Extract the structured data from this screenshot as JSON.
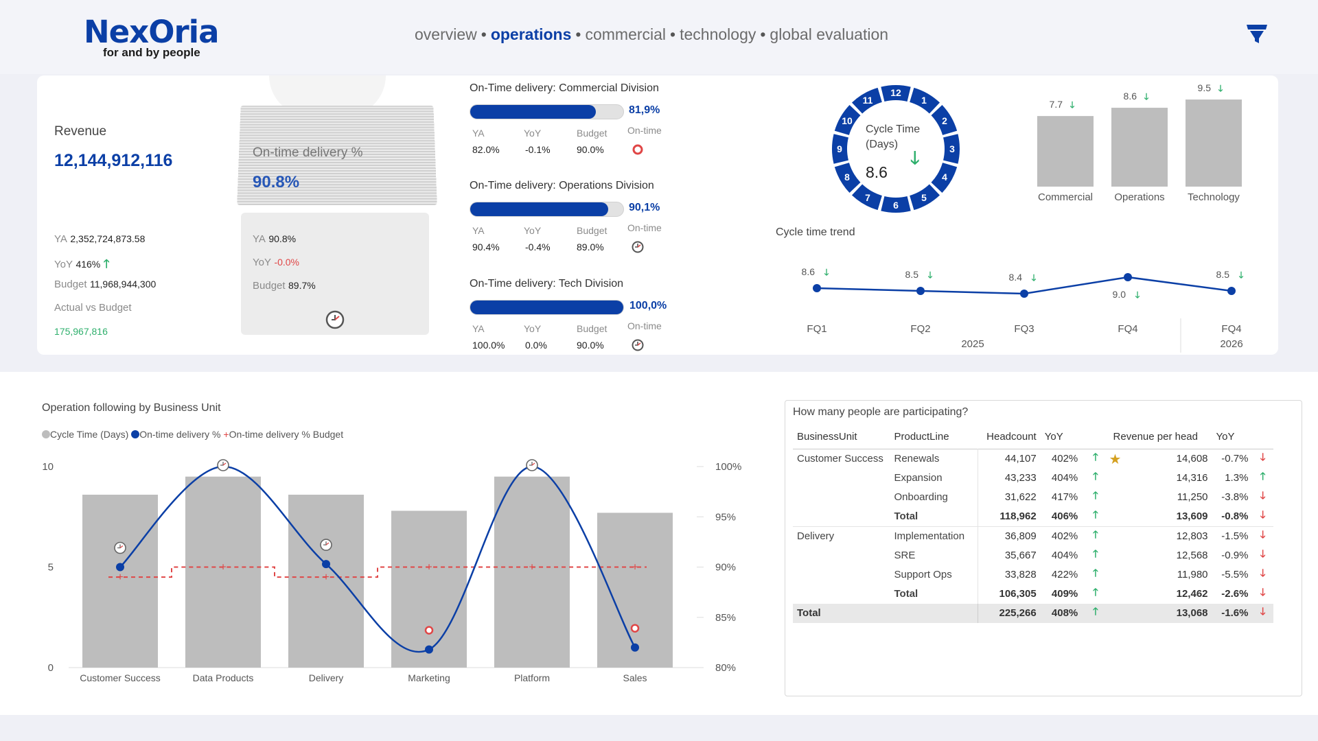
{
  "brand": {
    "name": "NexOria",
    "tagline": "for and by people"
  },
  "nav": {
    "items": [
      "overview",
      "operations",
      "commercial",
      "technology",
      "global evaluation"
    ],
    "active": "operations"
  },
  "revenue": {
    "title": "Revenue",
    "value": "12,144,912,116",
    "ya_label": "YA",
    "ya_value": "2,352,724,873.58",
    "yoy_label": "YoY",
    "yoy_value": "416%",
    "budget_label": "Budget",
    "budget_value": "11,968,944,300",
    "avb_label": "Actual vs Budget",
    "avb_value": "175,967,816"
  },
  "ontime_card": {
    "title": "On-time delivery %",
    "value": "90.8%",
    "ya_label": "YA",
    "ya_value": "90.8%",
    "yoy_label": "YoY",
    "yoy_value": "-0.0%",
    "budget_label": "Budget",
    "budget_value": "89.7%"
  },
  "divisions": [
    {
      "title": "On-Time delivery: Commercial Division",
      "fill": 0.819,
      "pct": "81,9%",
      "ya": "82.0%",
      "yoy": "-0.1%",
      "budget": "90.0%",
      "yoy_neg": true,
      "status": "red"
    },
    {
      "title": "On-Time delivery: Operations Division",
      "fill": 0.901,
      "pct": "90,1%",
      "ya": "90.4%",
      "yoy": "-0.4%",
      "budget": "89.0%",
      "yoy_neg": true,
      "status": "gray"
    },
    {
      "title": "On-Time delivery: Tech Division",
      "fill": 1.0,
      "pct": "100,0%",
      "ya": "100.0%",
      "yoy": "0.0%",
      "budget": "90.0%",
      "yoy_neg": false,
      "status": "gray"
    }
  ],
  "division_labels": {
    "ya": "YA",
    "yoy": "YoY",
    "budget": "Budget",
    "ontime": "On-time"
  },
  "cycle_time": {
    "title_line1": "Cycle Time",
    "title_line2": "(Days)",
    "value": "8.6",
    "clock_numbers": [
      "12",
      "1",
      "2",
      "3",
      "4",
      "5",
      "6",
      "7",
      "8",
      "9",
      "10",
      "11"
    ]
  },
  "cycle_bars": {
    "categories": [
      "Commercial",
      "Operations",
      "Technology"
    ],
    "values": [
      7.7,
      8.6,
      9.5
    ],
    "labels": [
      "7.7",
      "8.6",
      "9.5"
    ]
  },
  "cycle_trend": {
    "title": "Cycle time trend",
    "points": [
      {
        "x": "FQ1",
        "value": 8.6,
        "label": "8.6"
      },
      {
        "x": "FQ2",
        "value": 8.5,
        "label": "8.5"
      },
      {
        "x": "FQ3",
        "value": 8.4,
        "label": "8.4"
      },
      {
        "x": "FQ4",
        "value": 9.0,
        "label": "9.0"
      },
      {
        "x": "FQ4",
        "value": 8.5,
        "label": "8.5"
      }
    ],
    "years": [
      "2025",
      "2026"
    ]
  },
  "chart_data": {
    "type": "bar",
    "title": "Operation following by Business Unit",
    "categories": [
      "Customer Success",
      "Data Products",
      "Delivery",
      "Marketing",
      "Platform",
      "Sales"
    ],
    "series": [
      {
        "name": "Cycle Time (Days)",
        "type": "bar",
        "axis": "left",
        "values": [
          8.6,
          9.5,
          8.6,
          7.8,
          9.5,
          7.7
        ]
      },
      {
        "name": "On-time delivery %",
        "type": "line",
        "axis": "right",
        "values": [
          90.0,
          100.0,
          90.3,
          81.8,
          100.0,
          82.0
        ]
      },
      {
        "name": "On-time delivery % Budget",
        "type": "line",
        "axis": "right",
        "values": [
          89.0,
          90.0,
          89.0,
          90.0,
          90.0,
          90.0
        ]
      }
    ],
    "ylim_left": [
      0,
      10
    ],
    "yticks_left": [
      "0",
      "5",
      "10"
    ],
    "ylim_right": [
      80,
      100
    ],
    "yticks_right": [
      "80%",
      "85%",
      "90%",
      "95%",
      "100%"
    ],
    "legend": "top-left"
  },
  "people": {
    "title": "How many people are participating?",
    "headers": [
      "BusinessUnit",
      "ProductLine",
      "Headcount",
      "YoY",
      "Revenue per head",
      "YoY"
    ],
    "rows": [
      {
        "bu": "Customer Success",
        "pl": "Renewals",
        "hc": "44,107",
        "yoy": "402%",
        "rph": "14,608",
        "yoy2": "-0.7%",
        "down": true,
        "star": true
      },
      {
        "bu": "",
        "pl": "Expansion",
        "hc": "43,233",
        "yoy": "404%",
        "rph": "14,316",
        "yoy2": "1.3%",
        "down": false
      },
      {
        "bu": "",
        "pl": "Onboarding",
        "hc": "31,622",
        "yoy": "417%",
        "rph": "11,250",
        "yoy2": "-3.8%",
        "down": true
      },
      {
        "bu": "",
        "pl": "Total",
        "hc": "118,962",
        "yoy": "406%",
        "rph": "13,609",
        "yoy2": "-0.8%",
        "down": true,
        "bold": true
      },
      {
        "bu": "Delivery",
        "pl": "Implementation",
        "hc": "36,809",
        "yoy": "402%",
        "rph": "12,803",
        "yoy2": "-1.5%",
        "down": true
      },
      {
        "bu": "",
        "pl": "SRE",
        "hc": "35,667",
        "yoy": "404%",
        "rph": "12,568",
        "yoy2": "-0.9%",
        "down": true
      },
      {
        "bu": "",
        "pl": "Support Ops",
        "hc": "33,828",
        "yoy": "422%",
        "rph": "11,980",
        "yoy2": "-5.5%",
        "down": true
      },
      {
        "bu": "",
        "pl": "Total",
        "hc": "106,305",
        "yoy": "409%",
        "rph": "12,462",
        "yoy2": "-2.6%",
        "down": true,
        "bold": true
      }
    ],
    "total": {
      "bu": "Total",
      "hc": "225,266",
      "yoy": "408%",
      "rph": "13,068",
      "yoy2": "-1.6%"
    }
  },
  "colors": {
    "brand": "#0b3fa6",
    "positive": "#2eaf6c",
    "negative": "#e04646",
    "bar": "#bdbdbd"
  }
}
